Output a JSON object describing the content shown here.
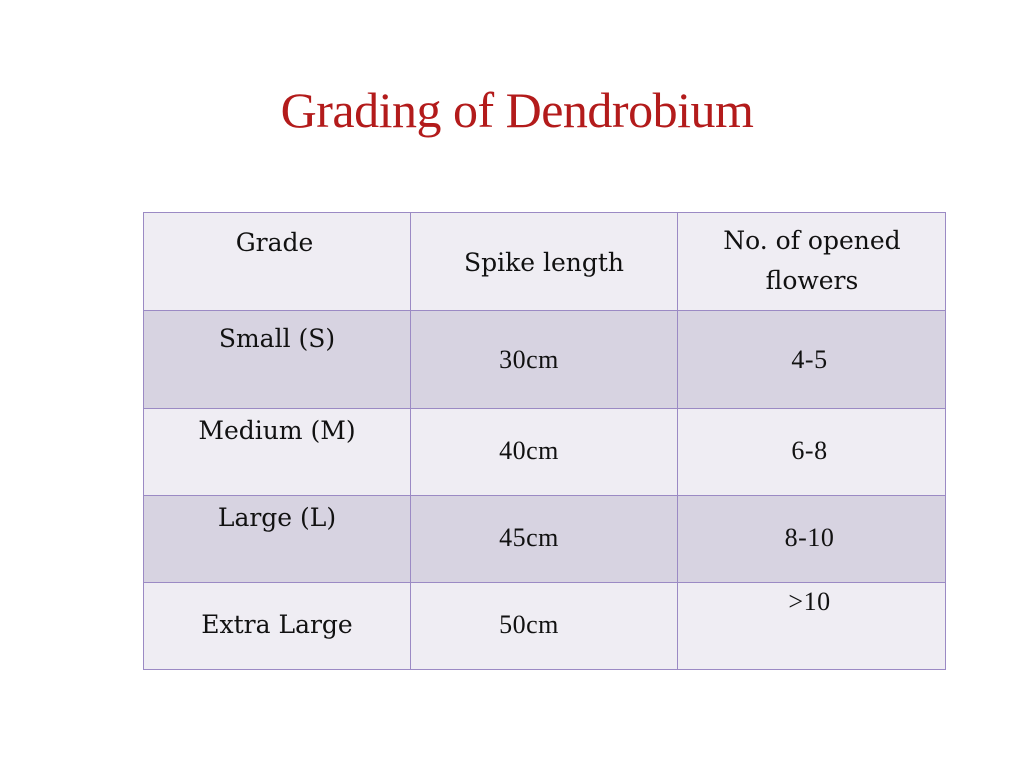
{
  "slide": {
    "title": "Grading of Dendrobium",
    "colors": {
      "title": "#b31b1b",
      "border": "#9b8ac4",
      "row_light": "#efedf3",
      "row_dark": "#d7d3e1"
    }
  },
  "table": {
    "headers": [
      "Grade",
      "Spike length",
      "No. of opened flowers"
    ],
    "rows": [
      {
        "grade": "Small (S)",
        "spike_length": "30cm",
        "opened_flowers": "4-5"
      },
      {
        "grade": "Medium (M)",
        "spike_length": "40cm",
        "opened_flowers": "6-8"
      },
      {
        "grade": "Large (L)",
        "spike_length": "45cm",
        "opened_flowers": "8-10"
      },
      {
        "grade": "Extra Large",
        "spike_length": "50cm",
        "opened_flowers": ">10"
      }
    ]
  }
}
